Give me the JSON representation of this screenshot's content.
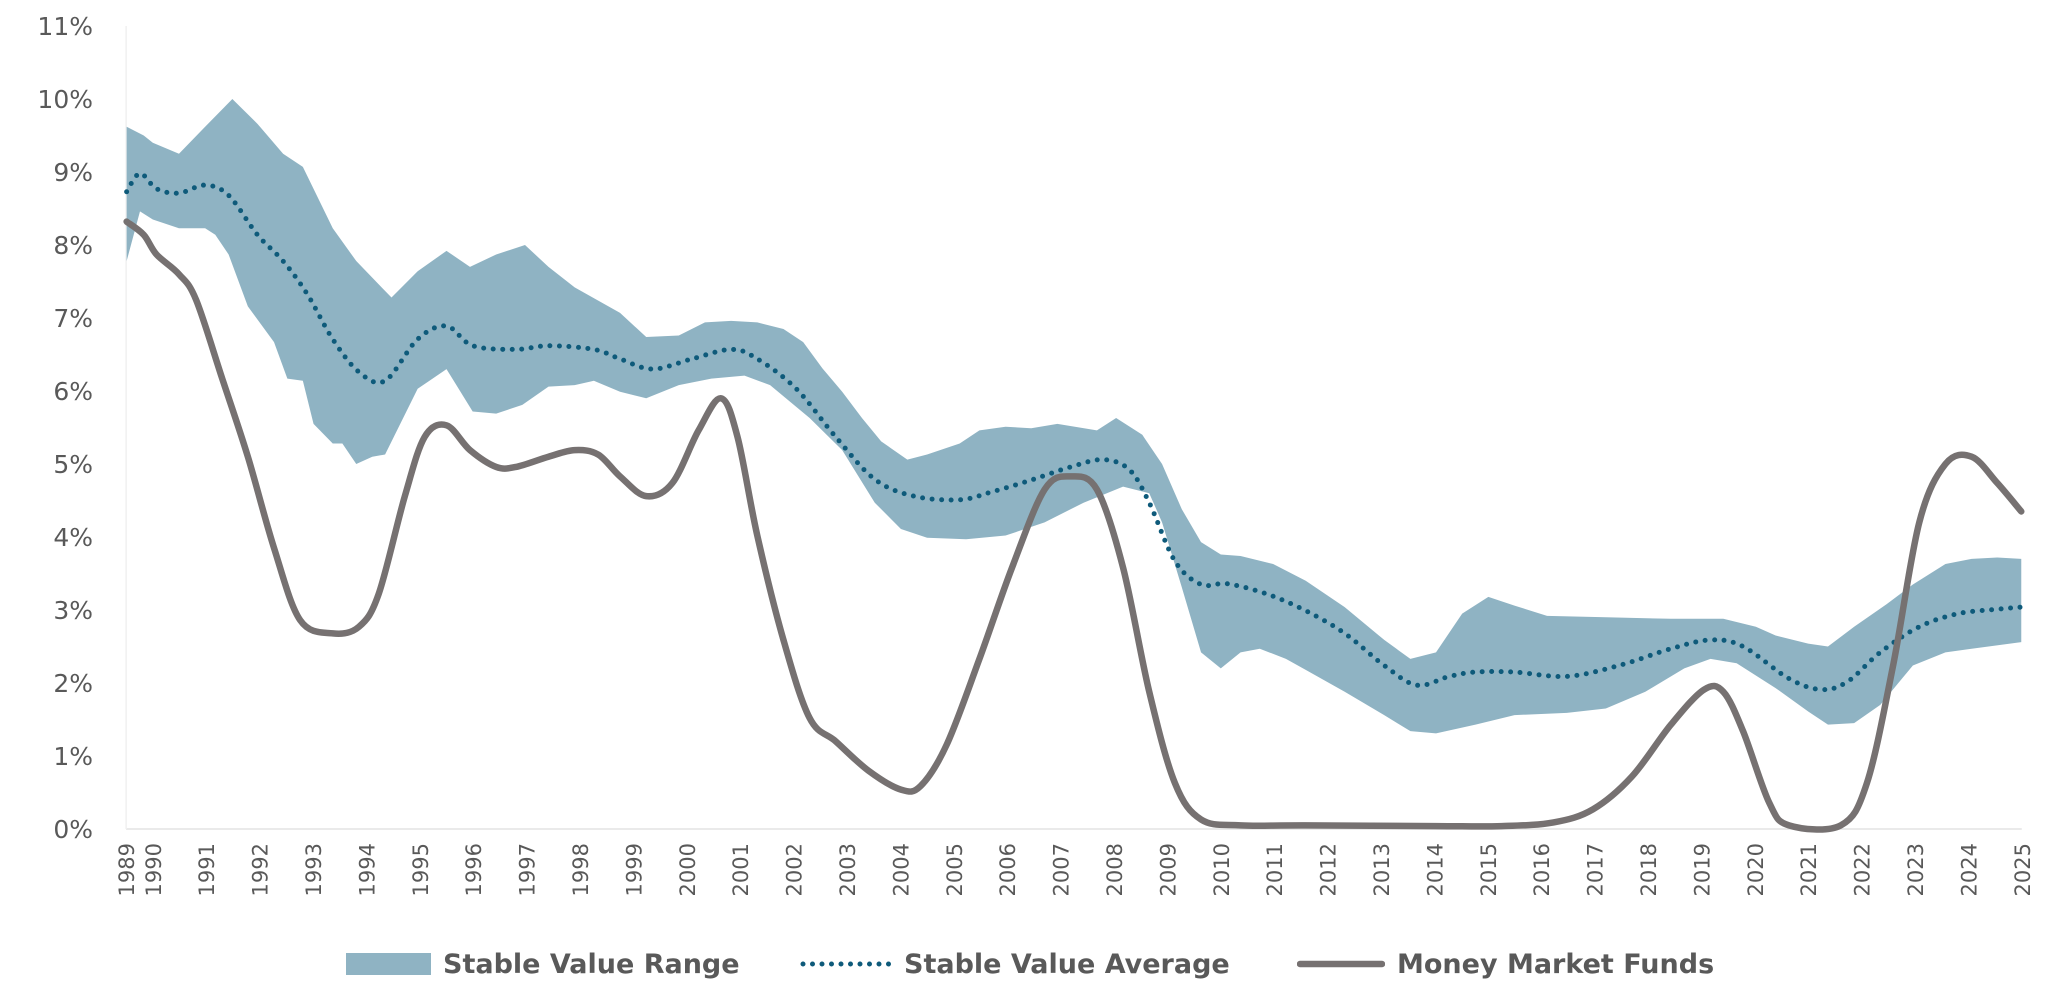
{
  "chart_data": {
    "type": "area",
    "title": "",
    "xlabel": "",
    "ylabel": "",
    "xlim": [
      1989.5,
      2025
    ],
    "ylim": [
      0,
      11
    ],
    "y_ticks": [
      0,
      1,
      2,
      3,
      4,
      5,
      6,
      7,
      8,
      9,
      10,
      11
    ],
    "y_tick_labels": [
      "0%",
      "1%",
      "2%",
      "3%",
      "4%",
      "5%",
      "6%",
      "7%",
      "8%",
      "9%",
      "10%",
      "11%"
    ],
    "x_ticks": [
      1989,
      1990,
      1991,
      1992,
      1993,
      1994,
      1995,
      1996,
      1997,
      1998,
      1999,
      2000,
      2001,
      2002,
      2003,
      2004,
      2005,
      2006,
      2007,
      2008,
      2009,
      2010,
      2011,
      2012,
      2013,
      2014,
      2015,
      2016,
      2017,
      2018,
      2019,
      2020,
      2021,
      2022,
      2023,
      2024,
      2025
    ],
    "grid": false,
    "legend_placement": "bottom",
    "colors": {
      "range": "#8fb3c3",
      "average": "#0e5a7a",
      "mmf": "#767171",
      "text": "#595959"
    },
    "series": [
      {
        "name": "Stable Value Range",
        "kind": "band",
        "upper": [
          [
            1989.51,
            9.62
          ],
          [
            1989.83,
            9.5
          ],
          [
            1990.0,
            9.4
          ],
          [
            1990.49,
            9.25
          ],
          [
            1990.98,
            9.62
          ],
          [
            1991.49,
            10.0
          ],
          [
            1991.96,
            9.66
          ],
          [
            1992.44,
            9.25
          ],
          [
            1992.81,
            9.07
          ],
          [
            1993.37,
            8.23
          ],
          [
            1993.81,
            7.78
          ],
          [
            1994.47,
            7.28
          ],
          [
            1994.96,
            7.64
          ],
          [
            1995.5,
            7.92
          ],
          [
            1995.94,
            7.7
          ],
          [
            1996.43,
            7.87
          ],
          [
            1996.97,
            8.0
          ],
          [
            1997.41,
            7.7
          ],
          [
            1997.9,
            7.42
          ],
          [
            1998.75,
            7.07
          ],
          [
            1999.24,
            6.74
          ],
          [
            1999.85,
            6.76
          ],
          [
            2000.34,
            6.94
          ],
          [
            2000.83,
            6.96
          ],
          [
            2001.32,
            6.94
          ],
          [
            2001.81,
            6.85
          ],
          [
            2002.18,
            6.67
          ],
          [
            2002.54,
            6.31
          ],
          [
            2002.91,
            5.99
          ],
          [
            2003.28,
            5.63
          ],
          [
            2003.64,
            5.31
          ],
          [
            2004.13,
            5.06
          ],
          [
            2004.5,
            5.13
          ],
          [
            2005.11,
            5.28
          ],
          [
            2005.48,
            5.46
          ],
          [
            2005.97,
            5.51
          ],
          [
            2006.45,
            5.49
          ],
          [
            2006.94,
            5.55
          ],
          [
            2007.68,
            5.46
          ],
          [
            2008.04,
            5.63
          ],
          [
            2008.53,
            5.4
          ],
          [
            2008.9,
            5.0
          ],
          [
            2009.27,
            4.38
          ],
          [
            2009.63,
            3.93
          ],
          [
            2010.0,
            3.76
          ],
          [
            2010.37,
            3.74
          ],
          [
            2010.98,
            3.63
          ],
          [
            2011.59,
            3.4
          ],
          [
            2012.32,
            3.04
          ],
          [
            2013.06,
            2.59
          ],
          [
            2013.55,
            2.33
          ],
          [
            2014.03,
            2.42
          ],
          [
            2014.52,
            2.95
          ],
          [
            2015.01,
            3.18
          ],
          [
            2015.5,
            3.06
          ],
          [
            2016.11,
            2.92
          ],
          [
            2017.21,
            2.9
          ],
          [
            2018.43,
            2.88
          ],
          [
            2019.41,
            2.88
          ],
          [
            2020.02,
            2.77
          ],
          [
            2020.39,
            2.65
          ],
          [
            2021.0,
            2.54
          ],
          [
            2021.37,
            2.5
          ],
          [
            2021.86,
            2.77
          ],
          [
            2022.47,
            3.08
          ],
          [
            2022.96,
            3.35
          ],
          [
            2023.57,
            3.63
          ],
          [
            2024.06,
            3.7
          ],
          [
            2024.54,
            3.72
          ],
          [
            2024.99,
            3.7
          ]
        ],
        "lower": [
          [
            1989.51,
            7.78
          ],
          [
            1989.76,
            8.46
          ],
          [
            1990.0,
            8.35
          ],
          [
            1990.49,
            8.23
          ],
          [
            1990.98,
            8.23
          ],
          [
            1991.17,
            8.14
          ],
          [
            1991.42,
            7.87
          ],
          [
            1991.78,
            7.16
          ],
          [
            1992.27,
            6.67
          ],
          [
            1992.52,
            6.17
          ],
          [
            1992.81,
            6.14
          ],
          [
            1993.01,
            5.55
          ],
          [
            1993.37,
            5.28
          ],
          [
            1993.55,
            5.28
          ],
          [
            1993.81,
            5.0
          ],
          [
            1994.11,
            5.1
          ],
          [
            1994.35,
            5.13
          ],
          [
            1994.96,
            6.03
          ],
          [
            1995.5,
            6.3
          ],
          [
            1995.99,
            5.72
          ],
          [
            1996.43,
            5.69
          ],
          [
            1996.92,
            5.81
          ],
          [
            1997.41,
            6.06
          ],
          [
            1997.9,
            6.08
          ],
          [
            1998.26,
            6.14
          ],
          [
            1998.75,
            5.99
          ],
          [
            1999.24,
            5.9
          ],
          [
            1999.85,
            6.08
          ],
          [
            2000.46,
            6.17
          ],
          [
            2001.08,
            6.21
          ],
          [
            2001.56,
            6.08
          ],
          [
            2002.3,
            5.63
          ],
          [
            2002.91,
            5.19
          ],
          [
            2003.52,
            4.47
          ],
          [
            2004.01,
            4.11
          ],
          [
            2004.5,
            3.99
          ],
          [
            2005.23,
            3.97
          ],
          [
            2005.97,
            4.02
          ],
          [
            2006.7,
            4.2
          ],
          [
            2007.43,
            4.47
          ],
          [
            2008.17,
            4.69
          ],
          [
            2008.66,
            4.6
          ],
          [
            2008.9,
            4.2
          ],
          [
            2009.27,
            3.31
          ],
          [
            2009.63,
            2.42
          ],
          [
            2010.0,
            2.2
          ],
          [
            2010.37,
            2.42
          ],
          [
            2010.73,
            2.47
          ],
          [
            2011.22,
            2.33
          ],
          [
            2011.59,
            2.18
          ],
          [
            2012.32,
            1.88
          ],
          [
            2013.06,
            1.56
          ],
          [
            2013.55,
            1.34
          ],
          [
            2014.03,
            1.31
          ],
          [
            2014.77,
            1.43
          ],
          [
            2015.5,
            1.56
          ],
          [
            2016.48,
            1.59
          ],
          [
            2017.21,
            1.65
          ],
          [
            2017.95,
            1.88
          ],
          [
            2018.68,
            2.2
          ],
          [
            2019.17,
            2.33
          ],
          [
            2019.66,
            2.27
          ],
          [
            2020.39,
            1.93
          ],
          [
            2021.0,
            1.61
          ],
          [
            2021.37,
            1.43
          ],
          [
            2021.86,
            1.45
          ],
          [
            2022.35,
            1.7
          ],
          [
            2022.96,
            2.24
          ],
          [
            2023.57,
            2.42
          ],
          [
            2024.06,
            2.47
          ],
          [
            2024.99,
            2.56
          ]
        ]
      },
      {
        "name": "Stable Value Average",
        "kind": "dotted-line",
        "points": [
          [
            1989.51,
            8.73
          ],
          [
            1989.76,
            8.98
          ],
          [
            1990.07,
            8.77
          ],
          [
            1990.49,
            8.71
          ],
          [
            1990.98,
            8.82
          ],
          [
            1991.42,
            8.68
          ],
          [
            1991.96,
            8.14
          ],
          [
            1992.44,
            7.78
          ],
          [
            1992.89,
            7.33
          ],
          [
            1993.37,
            6.71
          ],
          [
            1993.86,
            6.26
          ],
          [
            1994.35,
            6.14
          ],
          [
            1994.96,
            6.71
          ],
          [
            1995.5,
            6.89
          ],
          [
            1995.99,
            6.62
          ],
          [
            1996.8,
            6.57
          ],
          [
            1997.41,
            6.62
          ],
          [
            1998.26,
            6.57
          ],
          [
            1998.75,
            6.44
          ],
          [
            1999.36,
            6.3
          ],
          [
            2000.1,
            6.44
          ],
          [
            2000.83,
            6.57
          ],
          [
            2001.32,
            6.44
          ],
          [
            2002.05,
            6.03
          ],
          [
            2002.79,
            5.37
          ],
          [
            2003.52,
            4.79
          ],
          [
            2004.25,
            4.56
          ],
          [
            2005.11,
            4.51
          ],
          [
            2005.72,
            4.62
          ],
          [
            2006.45,
            4.78
          ],
          [
            2007.19,
            4.96
          ],
          [
            2007.8,
            5.06
          ],
          [
            2008.29,
            4.92
          ],
          [
            2008.66,
            4.47
          ],
          [
            2009.14,
            3.67
          ],
          [
            2009.63,
            3.35
          ],
          [
            2010.12,
            3.36
          ],
          [
            2010.86,
            3.22
          ],
          [
            2011.59,
            2.99
          ],
          [
            2012.32,
            2.68
          ],
          [
            2013.06,
            2.24
          ],
          [
            2013.67,
            1.97
          ],
          [
            2014.28,
            2.09
          ],
          [
            2014.77,
            2.15
          ],
          [
            2015.5,
            2.15
          ],
          [
            2016.48,
            2.09
          ],
          [
            2017.46,
            2.24
          ],
          [
            2018.43,
            2.47
          ],
          [
            2019.17,
            2.59
          ],
          [
            2019.78,
            2.5
          ],
          [
            2020.64,
            2.06
          ],
          [
            2021.25,
            1.91
          ],
          [
            2021.74,
            2.02
          ],
          [
            2022.35,
            2.42
          ],
          [
            2023.08,
            2.77
          ],
          [
            2023.81,
            2.95
          ],
          [
            2024.54,
            3.01
          ],
          [
            2024.99,
            3.04
          ]
        ]
      },
      {
        "name": "Money Market Funds",
        "kind": "line",
        "points": [
          [
            1989.51,
            8.32
          ],
          [
            1989.83,
            8.14
          ],
          [
            1990.07,
            7.87
          ],
          [
            1990.49,
            7.6
          ],
          [
            1990.81,
            7.25
          ],
          [
            1991.3,
            6.17
          ],
          [
            1991.78,
            5.1
          ],
          [
            1992.27,
            3.85
          ],
          [
            1992.76,
            2.86
          ],
          [
            1993.37,
            2.68
          ],
          [
            1993.86,
            2.77
          ],
          [
            1994.23,
            3.22
          ],
          [
            1994.72,
            4.56
          ],
          [
            1995.09,
            5.37
          ],
          [
            1995.5,
            5.53
          ],
          [
            1995.94,
            5.19
          ],
          [
            1996.43,
            4.96
          ],
          [
            1996.8,
            4.96
          ],
          [
            1997.41,
            5.1
          ],
          [
            1997.9,
            5.19
          ],
          [
            1998.34,
            5.13
          ],
          [
            1998.75,
            4.83
          ],
          [
            1999.24,
            4.56
          ],
          [
            1999.73,
            4.74
          ],
          [
            2000.22,
            5.46
          ],
          [
            2000.64,
            5.9
          ],
          [
            2000.95,
            5.37
          ],
          [
            2001.32,
            4.02
          ],
          [
            2001.81,
            2.59
          ],
          [
            2002.3,
            1.52
          ],
          [
            2002.79,
            1.2
          ],
          [
            2003.4,
            0.8
          ],
          [
            2004.01,
            0.54
          ],
          [
            2004.38,
            0.59
          ],
          [
            2004.87,
            1.16
          ],
          [
            2005.48,
            2.33
          ],
          [
            2006.09,
            3.58
          ],
          [
            2006.7,
            4.65
          ],
          [
            2007.19,
            4.83
          ],
          [
            2007.68,
            4.65
          ],
          [
            2008.17,
            3.58
          ],
          [
            2008.66,
            1.88
          ],
          [
            2009.14,
            0.63
          ],
          [
            2009.63,
            0.13
          ],
          [
            2010.37,
            0.05
          ],
          [
            2011.59,
            0.05
          ],
          [
            2014.03,
            0.04
          ],
          [
            2015.26,
            0.04
          ],
          [
            2016.23,
            0.09
          ],
          [
            2016.97,
            0.27
          ],
          [
            2017.7,
            0.72
          ],
          [
            2018.43,
            1.43
          ],
          [
            2019.05,
            1.91
          ],
          [
            2019.41,
            1.88
          ],
          [
            2019.78,
            1.34
          ],
          [
            2020.27,
            0.36
          ],
          [
            2020.64,
            0.05
          ],
          [
            2021.61,
            0.05
          ],
          [
            2022.1,
            0.63
          ],
          [
            2022.59,
            2.24
          ],
          [
            2023.08,
            4.2
          ],
          [
            2023.57,
            5.0
          ],
          [
            2024.06,
            5.1
          ],
          [
            2024.54,
            4.74
          ],
          [
            2024.99,
            4.35
          ]
        ]
      }
    ]
  }
}
